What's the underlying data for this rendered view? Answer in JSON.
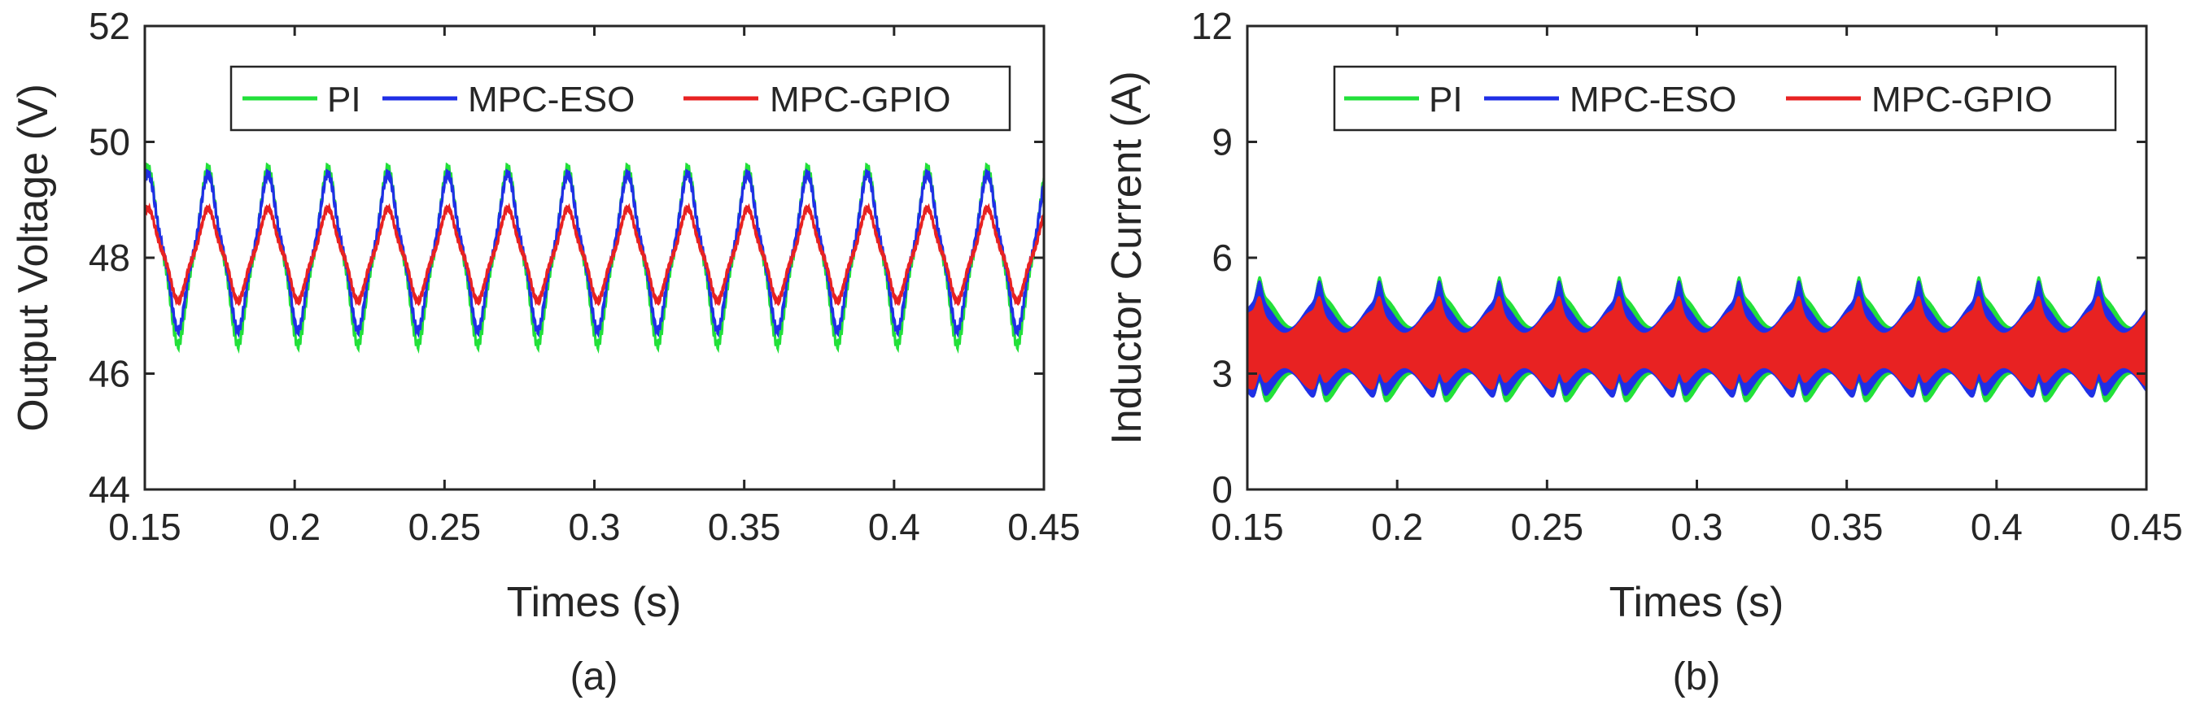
{
  "chart_data": [
    {
      "type": "line",
      "panel": "(a)",
      "xlabel": "Times (s)",
      "ylabel": "Output Voltage (V)",
      "xlim": [
        0.15,
        0.45
      ],
      "ylim": [
        44,
        52
      ],
      "xticks": [
        "0.15",
        "0.2",
        "0.25",
        "0.3",
        "0.35",
        "0.4",
        "0.45"
      ],
      "yticks": [
        "44",
        "46",
        "48",
        "50",
        "52"
      ],
      "legend_position": "top-right",
      "period_s": 0.02,
      "series": [
        {
          "name": "PI",
          "color": "#22e03a",
          "min": 46.5,
          "max": 49.55,
          "mean": 48.0
        },
        {
          "name": "MPC-ESO",
          "color": "#1f2fe6",
          "min": 46.75,
          "max": 49.45,
          "mean": 48.05
        },
        {
          "name": "MPC-GPIO",
          "color": "#e82222",
          "min": 47.25,
          "max": 48.85,
          "mean": 48.0
        }
      ]
    },
    {
      "type": "line",
      "panel": "(b)",
      "xlabel": "Times (s)",
      "ylabel": "Inductor Current (A)",
      "xlim": [
        0.15,
        0.45
      ],
      "ylim": [
        0,
        12
      ],
      "xticks": [
        "0.15",
        "0.2",
        "0.25",
        "0.3",
        "0.35",
        "0.4",
        "0.45"
      ],
      "yticks": [
        "0",
        "3",
        "6",
        "9",
        "12"
      ],
      "legend_position": "top-right",
      "period_s": 0.02,
      "series": [
        {
          "name": "PI",
          "color": "#22e03a",
          "min": 2.2,
          "max": 5.3,
          "mean": 3.6
        },
        {
          "name": "MPC-ESO",
          "color": "#1f2fe6",
          "min": 2.3,
          "max": 5.2,
          "mean": 3.6
        },
        {
          "name": "MPC-GPIO",
          "color": "#e82222",
          "min": 2.4,
          "max": 4.7,
          "mean": 3.6
        }
      ]
    }
  ]
}
